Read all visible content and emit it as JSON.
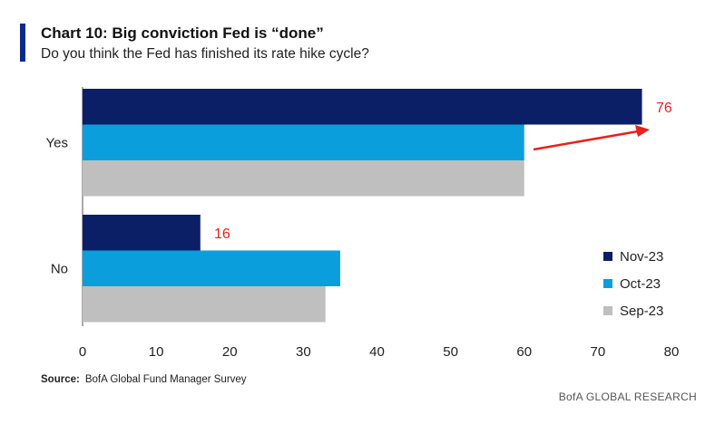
{
  "header": {
    "title": "Chart 10: Big conviction Fed is “done”",
    "subtitle": "Do you think the Fed has finished its rate hike cycle?"
  },
  "chart_data": {
    "type": "bar",
    "orientation": "horizontal",
    "categories": [
      "Yes",
      "No"
    ],
    "series": [
      {
        "name": "Nov-23",
        "values": [
          76,
          16
        ],
        "color": "#0b1f66"
      },
      {
        "name": "Oct-23",
        "values": [
          60,
          35
        ],
        "color": "#0a9fdc"
      },
      {
        "name": "Sep-23",
        "values": [
          60,
          33
        ],
        "color": "#bfbfbf"
      }
    ],
    "xlim": [
      0,
      80
    ],
    "xticks": [
      0,
      10,
      20,
      30,
      40,
      50,
      60,
      70,
      80
    ],
    "grid": false,
    "legend_position": "bottom-right",
    "annotations": [
      {
        "text": "76",
        "color": "#e8211a",
        "arrow": true
      },
      {
        "text": "16",
        "color": "#e8211a",
        "arrow": false
      }
    ]
  },
  "footer": {
    "source_label": "Source:",
    "source_text": "BofA Global Fund Manager Survey",
    "brand": "BofA GLOBAL RESEARCH"
  }
}
